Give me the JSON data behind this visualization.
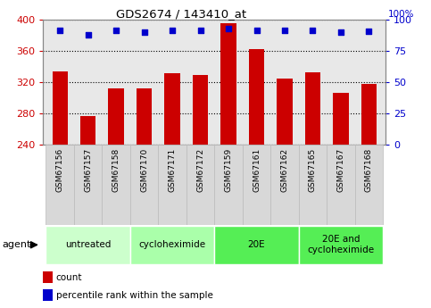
{
  "title": "GDS2674 / 143410_at",
  "samples": [
    "GSM67156",
    "GSM67157",
    "GSM67158",
    "GSM67170",
    "GSM67171",
    "GSM67172",
    "GSM67159",
    "GSM67161",
    "GSM67162",
    "GSM67165",
    "GSM67167",
    "GSM67168"
  ],
  "bar_values": [
    334,
    277,
    312,
    312,
    332,
    330,
    396,
    363,
    325,
    333,
    307,
    318
  ],
  "percentile_values": [
    92,
    88,
    92,
    90,
    92,
    92,
    93,
    92,
    92,
    92,
    90,
    91
  ],
  "bar_color": "#cc0000",
  "dot_color": "#0000cc",
  "ylim_left": [
    240,
    400
  ],
  "ylim_right": [
    0,
    100
  ],
  "yticks_left": [
    240,
    280,
    320,
    360,
    400
  ],
  "yticks_right": [
    0,
    25,
    50,
    75,
    100
  ],
  "groups": [
    {
      "label": "untreated",
      "start": 0,
      "end": 3,
      "color": "#ccffcc"
    },
    {
      "label": "cycloheximide",
      "start": 3,
      "end": 6,
      "color": "#aaffaa"
    },
    {
      "label": "20E",
      "start": 6,
      "end": 9,
      "color": "#55ee55"
    },
    {
      "label": "20E and\ncycloheximide",
      "start": 9,
      "end": 12,
      "color": "#55ee55"
    }
  ],
  "agent_label": "agent",
  "legend_count_label": "count",
  "legend_pct_label": "percentile rank within the sample",
  "left_tick_color": "#cc0000",
  "right_tick_color": "#0000cc",
  "background_color": "#ffffff",
  "plot_bg_color": "#e8e8e8",
  "sample_box_color": "#d8d8d8",
  "sample_box_edge_color": "#bbbbbb"
}
